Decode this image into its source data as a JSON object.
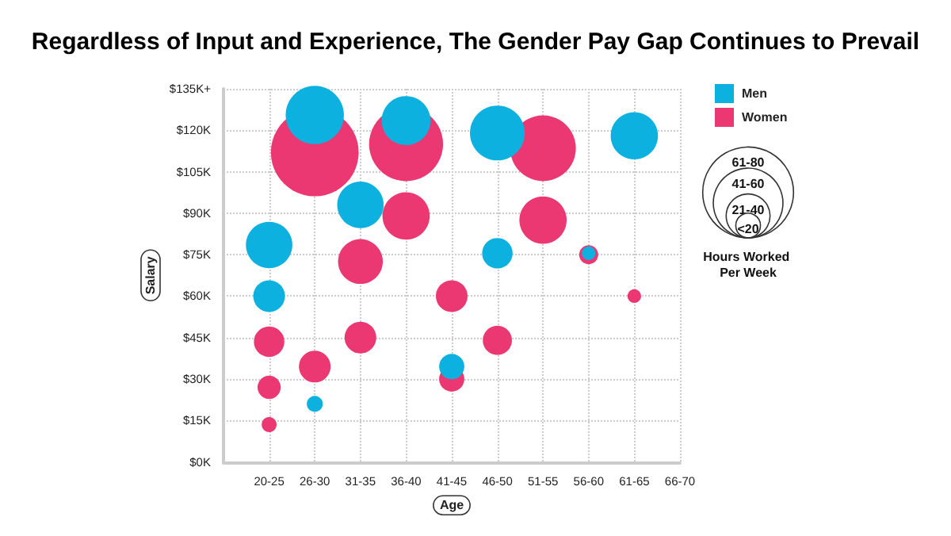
{
  "chart_data": {
    "type": "bubble",
    "title": "Regardless of Input and Experience, The Gender Pay Gap Continues to Prevail",
    "xlabel": "Age",
    "ylabel": "Salary",
    "categories": [
      null,
      "20-25",
      "26-30",
      "31-35",
      "36-40",
      "41-45",
      "46-50",
      "51-55",
      "56-60",
      "61-65",
      "66-70"
    ],
    "ylim": [
      0,
      135
    ],
    "yticks": [
      {
        "value": 0,
        "label": "$0K"
      },
      {
        "value": 15,
        "label": "$15K"
      },
      {
        "value": 30,
        "label": "$30K"
      },
      {
        "value": 45,
        "label": "$45K"
      },
      {
        "value": 60,
        "label": "$60K"
      },
      {
        "value": 75,
        "label": "$75K"
      },
      {
        "value": 90,
        "label": "$90K"
      },
      {
        "value": 105,
        "label": "$105K"
      },
      {
        "value": 120,
        "label": "$120K"
      },
      {
        "value": 135,
        "label": "$135K+"
      }
    ],
    "grid": true,
    "legend": "top right",
    "size_legend": [
      {
        "value": 1.07,
        "label": "61-80"
      },
      {
        "value": 0.63,
        "label": "41-60"
      },
      {
        "value": 0.25,
        "label": "21-40"
      },
      {
        "value": 0.079,
        "label": "<20"
      }
    ],
    "annotations": [
      "Hours Worked Per Week"
    ],
    "series": [
      {
        "name": "Women",
        "color": "#ec3872",
        "x": [
          "26-30",
          "36-40",
          "51-55",
          "36-40",
          "51-55",
          "31-35",
          "56-60",
          "41-45",
          "61-65",
          "20-25",
          "31-35",
          "46-50",
          "26-30",
          "41-45",
          "20-25",
          "20-25"
        ],
        "values": [
          112,
          115,
          113.5,
          89,
          87.5,
          72.5,
          75,
          60,
          60,
          43.5,
          45,
          44,
          34.5,
          30,
          27,
          13.5
        ],
        "sizes": [
          1,
          0.71,
          0.56,
          0.29,
          0.29,
          0.26,
          0.047,
          0.13,
          0.024,
          0.12,
          0.13,
          0.11,
          0.13,
          0.083,
          0.07,
          0.029
        ]
      },
      {
        "name": "Men",
        "color": "#0cb1e0",
        "x": [
          "26-30",
          "36-40",
          "46-50",
          "61-65",
          "31-35",
          "20-25",
          "46-50",
          "56-60",
          "20-25",
          "41-45",
          "26-30"
        ],
        "values": [
          125.5,
          123.5,
          119,
          118,
          93,
          78.5,
          75.5,
          75.5,
          60,
          34.5,
          21
        ],
        "sizes": [
          0.44,
          0.31,
          0.39,
          0.29,
          0.28,
          0.28,
          0.12,
          0.024,
          0.13,
          0.083,
          0.033
        ]
      }
    ]
  }
}
